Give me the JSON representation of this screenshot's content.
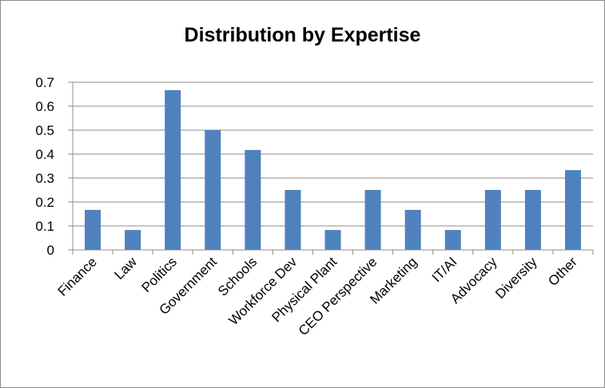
{
  "chart_data": {
    "type": "bar",
    "title": "Distribution by Expertise",
    "xlabel": "",
    "ylabel": "",
    "categories": [
      "Finance",
      "Law",
      "Politics",
      "Government",
      "Schools",
      "Workforce Dev",
      "Physical Plant",
      "CEO Perspective",
      "Marketing",
      "IT/AI",
      "Advocacy",
      "Diversity",
      "Other"
    ],
    "values": [
      0.167,
      0.083,
      0.667,
      0.5,
      0.417,
      0.25,
      0.083,
      0.25,
      0.167,
      0.083,
      0.25,
      0.25,
      0.333
    ],
    "ylim": [
      0,
      0.7
    ],
    "yticks": [
      "0",
      "0.1",
      "0.2",
      "0.3",
      "0.4",
      "0.5",
      "0.6",
      "0.7"
    ],
    "grid": true,
    "legend": "none",
    "bar_color": "#4f81bd",
    "gridline_color": "#8c8c8c"
  }
}
